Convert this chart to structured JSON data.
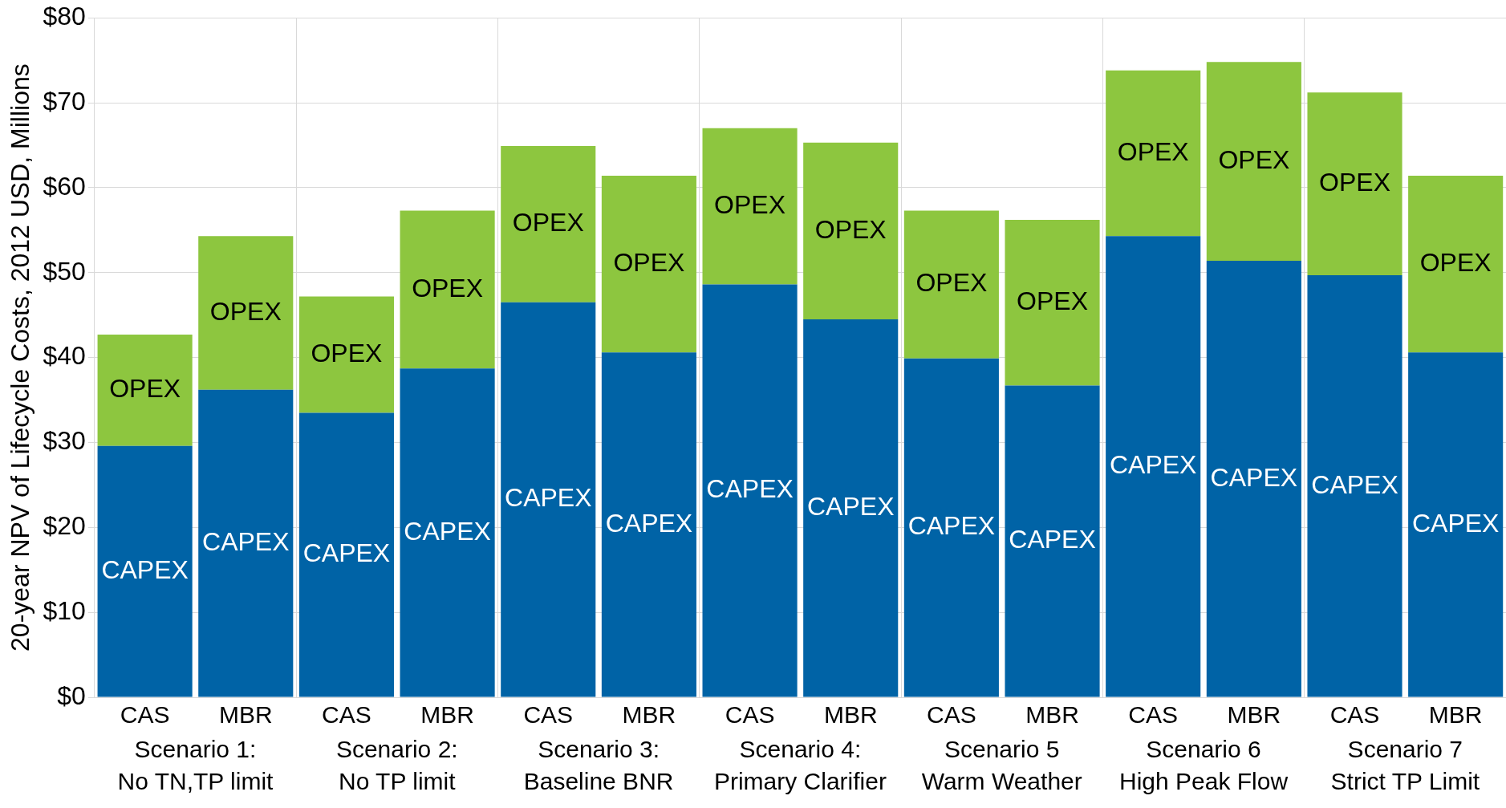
{
  "chart_data": {
    "type": "bar",
    "stacked": true,
    "ylabel": "20-year NPV of Lifecycle Costs, 2012 USD, Millions",
    "categories": [
      "CAS",
      "MBR",
      "CAS",
      "MBR",
      "CAS",
      "MBR",
      "CAS",
      "MBR",
      "CAS",
      "MBR",
      "CAS",
      "MBR",
      "CAS",
      "MBR"
    ],
    "series": [
      {
        "name": "CAPEX",
        "color": "#0063a6",
        "values": [
          29.6,
          36.2,
          33.5,
          38.7,
          46.5,
          40.6,
          48.6,
          44.5,
          39.9,
          36.7,
          54.3,
          51.4,
          49.7,
          40.6
        ]
      },
      {
        "name": "OPEX",
        "color": "#8dc63f",
        "values": [
          13.1,
          18.1,
          13.7,
          18.6,
          18.4,
          20.8,
          18.4,
          20.8,
          17.4,
          19.5,
          19.5,
          23.4,
          21.5,
          20.8
        ]
      }
    ],
    "ylim": [
      0,
      80
    ],
    "yticks": [
      {
        "value": 0,
        "label": "$0"
      },
      {
        "value": 10,
        "label": "$10"
      },
      {
        "value": 20,
        "label": "$20"
      },
      {
        "value": 30,
        "label": "$30"
      },
      {
        "value": 40,
        "label": "$40"
      },
      {
        "value": 50,
        "label": "$50"
      },
      {
        "value": 60,
        "label": "$60"
      },
      {
        "value": 70,
        "label": "$70"
      },
      {
        "value": 80,
        "label": "$80"
      }
    ],
    "grid": true,
    "legend": false,
    "annotations": [
      "Scenario 1:\nNo TN,TP limit",
      "Scenario 2:\nNo TP limit",
      "Scenario 3:\nBaseline BNR",
      "Scenario 4:\nPrimary Clarifier",
      "Scenario 5\nWarm Weather",
      "Scenario 6\nHigh Peak Flow",
      "Scenario 7\nStrict TP Limit"
    ]
  }
}
